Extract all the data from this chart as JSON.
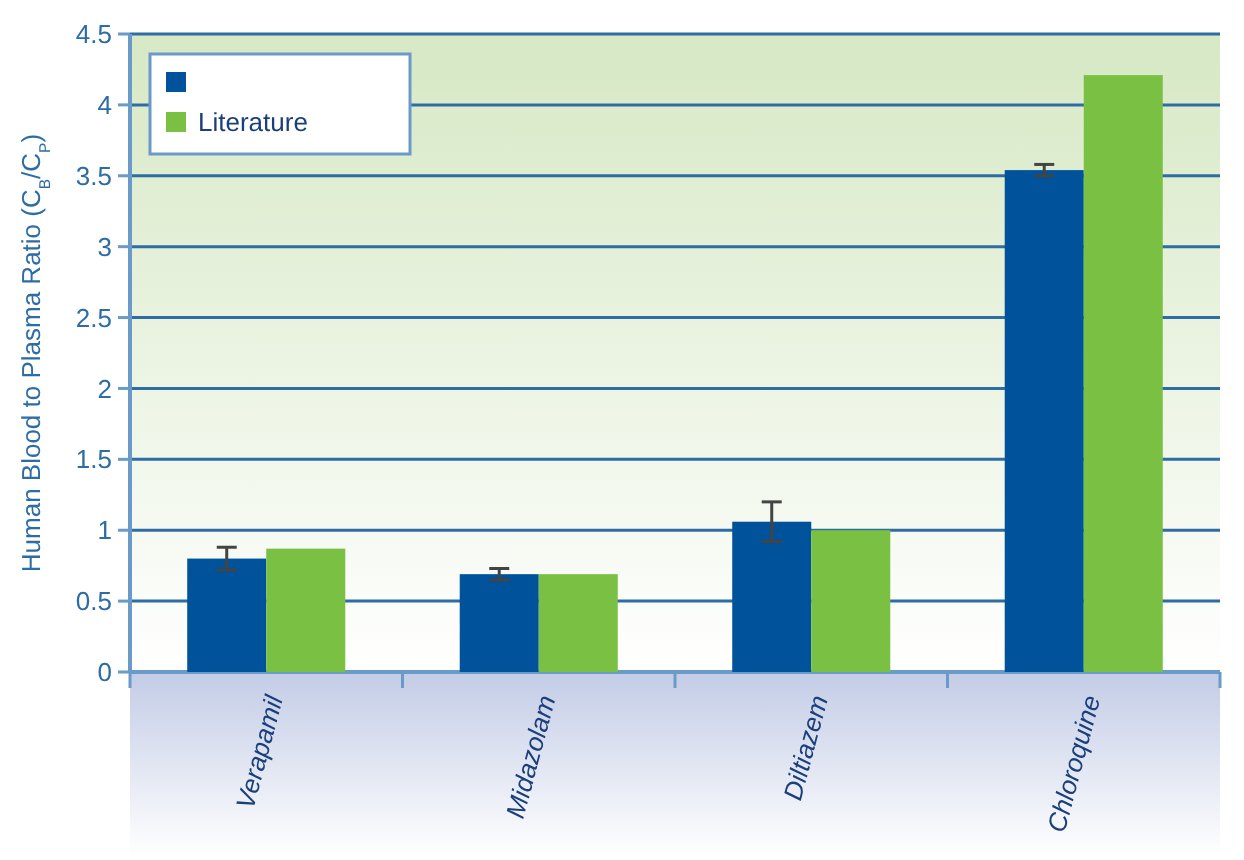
{
  "chart_data": {
    "type": "bar",
    "ylabel": "Human Blood to Plasma Ratio (C$_{B}$/C$_{P}$)",
    "categories": [
      "Verapamil",
      "Midazolam",
      "Diltiazem",
      "Chloroquine"
    ],
    "series": [
      {
        "color": "#00529b",
        "values": [
          0.8,
          0.69,
          1.06,
          3.54
        ],
        "errors": [
          0.08,
          0.04,
          0.14,
          0.04
        ]
      },
      {
        "name": "Literature",
        "color": "#7ac143",
        "values": [
          0.87,
          0.69,
          1.0,
          4.21
        ]
      }
    ],
    "ylim": [
      0,
      4.5
    ],
    "yticks": [
      0,
      0.5,
      1,
      1.5,
      2,
      2.5,
      3,
      3.5,
      4,
      4.5
    ],
    "grid": "y",
    "legend": "top left"
  }
}
